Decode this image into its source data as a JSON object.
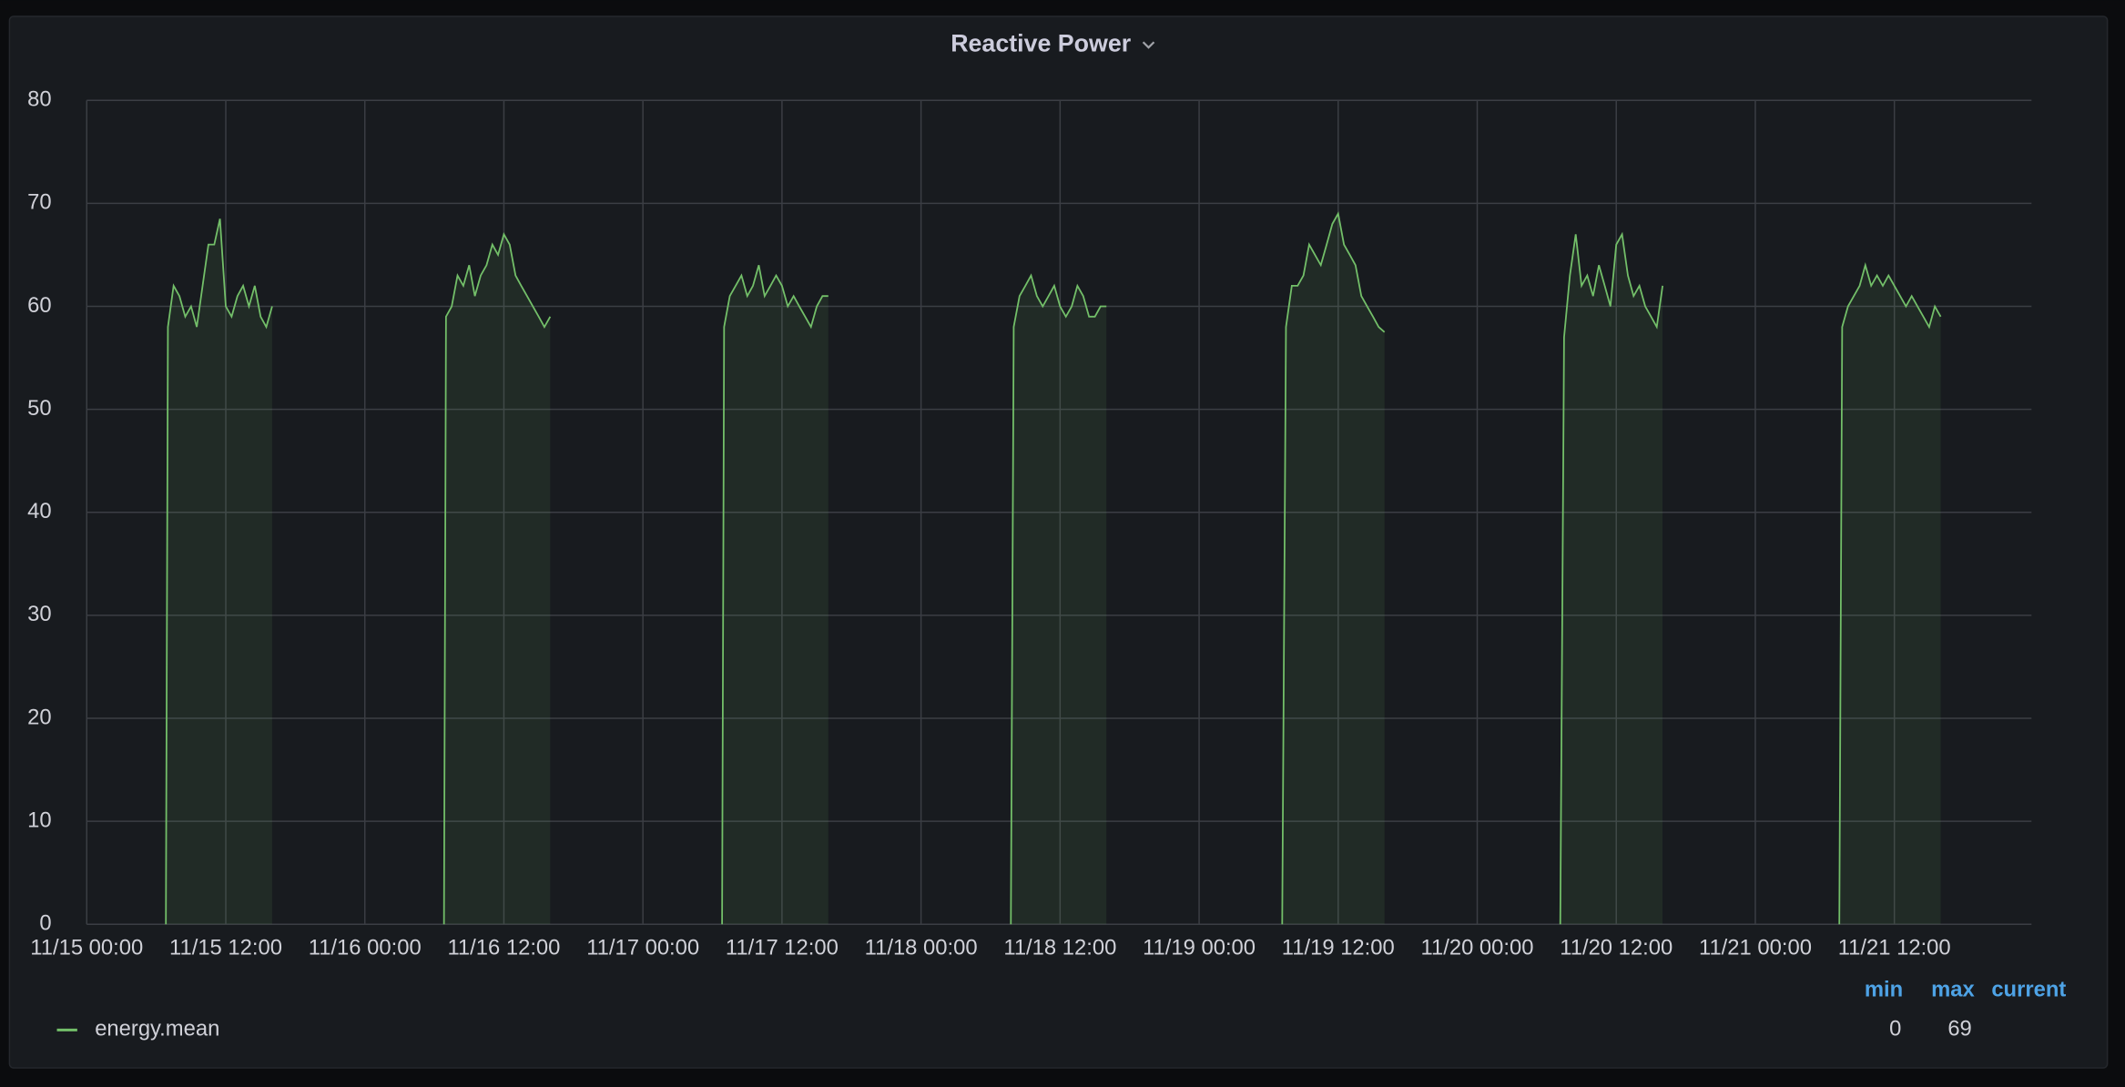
{
  "chart_data": {
    "type": "line",
    "title": "Reactive Power",
    "x": [
      "11/15 06:50",
      "11/15 07:00",
      "11/15 07:30",
      "11/15 08:00",
      "11/15 08:30",
      "11/15 09:00",
      "11/15 09:30",
      "11/15 10:00",
      "11/15 10:30",
      "11/15 11:00",
      "11/15 11:30",
      "11/15 12:00",
      "11/15 12:30",
      "11/15 13:00",
      "11/15 13:30",
      "11/15 14:00",
      "11/15 14:30",
      "11/15 15:00",
      "11/15 15:30",
      "11/15 16:00",
      "11/15 16:30",
      "11/16 06:50",
      "11/16 07:00",
      "11/16 07:30",
      "11/16 08:00",
      "11/16 08:30",
      "11/16 09:00",
      "11/16 09:30",
      "11/16 10:00",
      "11/16 10:30",
      "11/16 11:00",
      "11/16 11:30",
      "11/16 12:00",
      "11/16 12:30",
      "11/16 13:00",
      "11/16 13:30",
      "11/16 14:00",
      "11/16 14:30",
      "11/16 15:00",
      "11/16 15:30",
      "11/16 16:00",
      "11/16 16:30",
      "11/17 06:50",
      "11/17 07:00",
      "11/17 07:30",
      "11/17 08:00",
      "11/17 08:30",
      "11/17 09:00",
      "11/17 09:30",
      "11/17 10:00",
      "11/17 10:30",
      "11/17 11:00",
      "11/17 11:30",
      "11/17 12:00",
      "11/17 12:30",
      "11/17 13:00",
      "11/17 13:30",
      "11/17 14:00",
      "11/17 14:30",
      "11/17 15:00",
      "11/17 15:30",
      "11/17 16:00",
      "11/17 16:30",
      "11/18 07:45",
      "11/18 08:00",
      "11/18 08:30",
      "11/18 09:00",
      "11/18 09:30",
      "11/18 10:00",
      "11/18 10:30",
      "11/18 11:00",
      "11/18 11:30",
      "11/18 12:00",
      "11/18 12:30",
      "11/18 13:00",
      "11/18 13:30",
      "11/18 14:00",
      "11/18 14:30",
      "11/18 15:00",
      "11/18 15:30",
      "11/18 16:00",
      "11/18 16:30",
      "11/19 07:10",
      "11/19 07:30",
      "11/19 08:00",
      "11/19 08:30",
      "11/19 09:00",
      "11/19 09:30",
      "11/19 10:00",
      "11/19 10:30",
      "11/19 11:00",
      "11/19 11:30",
      "11/19 12:00",
      "11/19 12:30",
      "11/19 13:00",
      "11/19 13:30",
      "11/19 14:00",
      "11/19 14:30",
      "11/19 15:00",
      "11/19 15:30",
      "11/19 16:00",
      "11/19 16:30",
      "11/20 07:10",
      "11/20 07:30",
      "11/20 08:00",
      "11/20 08:30",
      "11/20 09:00",
      "11/20 09:30",
      "11/20 10:00",
      "11/20 10:30",
      "11/20 11:00",
      "11/20 11:30",
      "11/20 12:00",
      "11/20 12:30",
      "11/20 13:00",
      "11/20 13:30",
      "11/20 14:00",
      "11/20 14:30",
      "11/20 15:00",
      "11/20 15:30",
      "11/20 16:00",
      "11/20 16:30",
      "11/21 07:15",
      "11/21 07:30",
      "11/21 08:00",
      "11/21 08:30",
      "11/21 09:00",
      "11/21 09:30",
      "11/21 10:00",
      "11/21 10:30",
      "11/21 11:00",
      "11/21 11:30",
      "11/21 12:00",
      "11/21 12:30",
      "11/21 13:00",
      "11/21 13:30",
      "11/21 14:00",
      "11/21 14:30",
      "11/21 15:00",
      "11/21 15:30",
      "11/21 16:00"
    ],
    "series": [
      {
        "name": "energy.mean",
        "color": "#73bf69",
        "values": [
          0,
          58,
          62,
          61,
          59,
          60,
          58,
          62,
          66,
          66,
          68.5,
          60,
          59,
          61,
          62,
          60,
          62,
          59,
          58,
          60,
          null,
          0,
          59,
          60,
          63,
          62,
          64,
          61,
          63,
          64,
          66,
          65,
          67,
          66,
          63,
          62,
          61,
          60,
          59,
          58,
          59,
          null,
          0,
          58,
          61,
          62,
          63,
          61,
          62,
          64,
          61,
          62,
          63,
          62,
          60,
          61,
          60,
          59,
          58,
          60,
          61,
          61,
          null,
          0,
          58,
          61,
          62,
          63,
          61,
          60,
          61,
          62,
          60,
          59,
          60,
          62,
          61,
          59,
          59,
          60,
          60,
          null,
          0,
          58,
          62,
          62,
          63,
          66,
          65,
          64,
          66,
          68,
          69,
          66,
          65,
          64,
          61,
          60,
          59,
          58,
          57.5,
          null,
          0,
          57,
          63,
          67,
          62,
          63,
          61,
          64,
          62,
          60,
          66,
          67,
          63,
          61,
          62,
          60,
          59,
          58,
          62,
          null,
          0,
          58,
          60,
          61,
          62,
          64,
          62,
          63,
          62,
          63,
          62,
          61,
          60,
          61,
          60,
          59,
          58,
          60,
          59
        ]
      }
    ],
    "xlim": [
      "11/15 00:00",
      "11/21 23:50"
    ],
    "xticks": [
      "11/15 00:00",
      "11/15 12:00",
      "11/16 00:00",
      "11/16 12:00",
      "11/17 00:00",
      "11/17 12:00",
      "11/18 00:00",
      "11/18 12:00",
      "11/19 00:00",
      "11/19 12:00",
      "11/20 00:00",
      "11/20 12:00",
      "11/21 00:00",
      "11/21 12:00"
    ],
    "ylim": [
      0,
      80
    ],
    "yticks": [
      0,
      10,
      20,
      30,
      40,
      50,
      60,
      70,
      80
    ],
    "grid": true,
    "legend_stats": {
      "headers": [
        "min",
        "max",
        "current"
      ],
      "values": [
        0,
        69,
        null
      ]
    }
  }
}
